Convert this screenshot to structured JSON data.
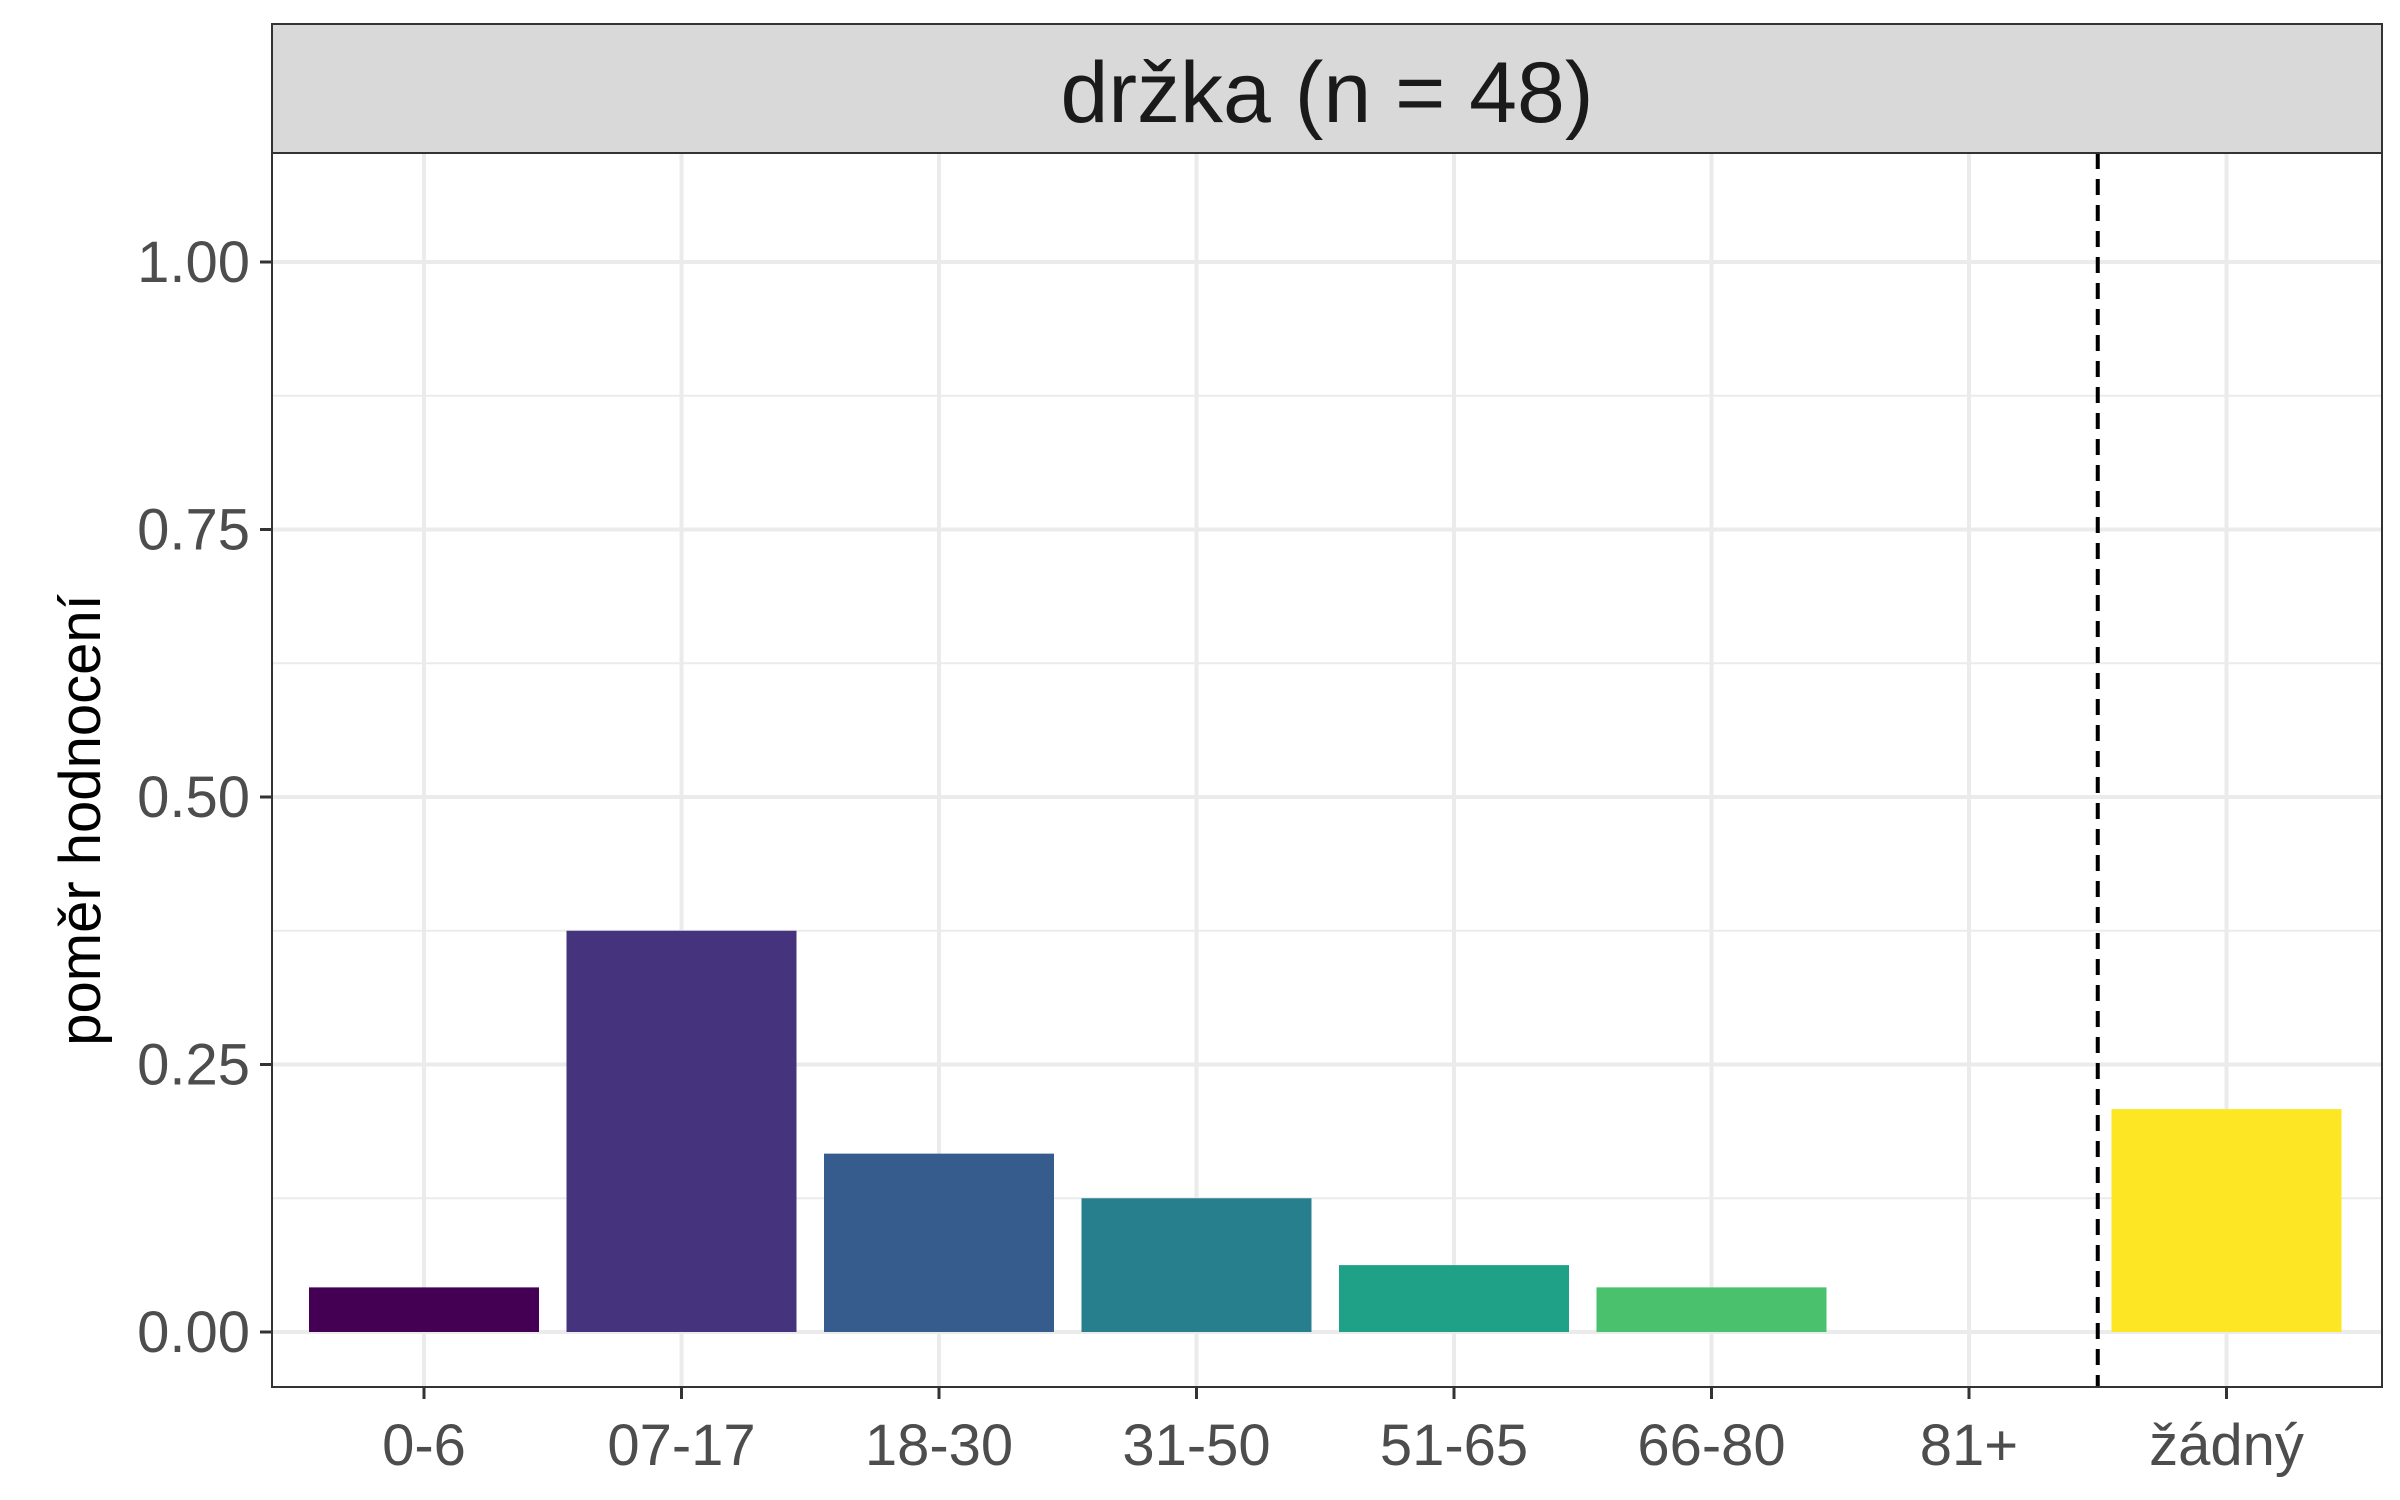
{
  "chart_data": {
    "type": "bar",
    "facet_title": "držka (n = 48)",
    "ylabel": "poměr hodnocení",
    "xlabel": "",
    "ylim": [
      0,
      1.0
    ],
    "y_ticks": [
      "0.00",
      "0.25",
      "0.50",
      "0.75",
      "1.00"
    ],
    "categories": [
      "0-6",
      "07-17",
      "18-30",
      "31-50",
      "51-65",
      "66-80",
      "81+",
      "žádný"
    ],
    "values": [
      0.0417,
      0.375,
      0.1667,
      0.125,
      0.0625,
      0.0417,
      0.0,
      0.2083
    ],
    "colors": [
      "#440154",
      "#46337E",
      "#365C8D",
      "#277F8E",
      "#1FA187",
      "#4AC16D",
      "#A0DA39",
      "#FDE725"
    ],
    "separator": "dashed vertical line between 81+ and žádný",
    "grid": true,
    "legend": "none"
  }
}
